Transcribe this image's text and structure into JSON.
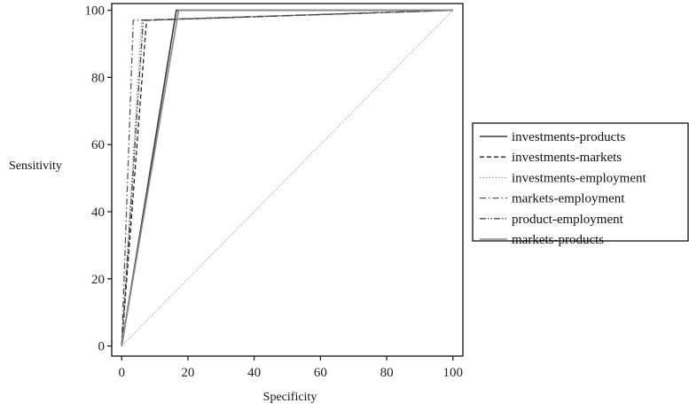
{
  "chart_data": {
    "type": "line",
    "xlabel": "Specificity",
    "ylabel": "Sensitivity",
    "xlim": [
      -3,
      103
    ],
    "ylim": [
      -3,
      102
    ],
    "xticks": [
      0,
      20,
      40,
      60,
      80,
      100
    ],
    "yticks": [
      0,
      20,
      40,
      60,
      80,
      100
    ],
    "xtick_labels": [
      "0",
      "20",
      "40",
      "60",
      "80",
      "100"
    ],
    "ytick_labels": [
      "0",
      "20",
      "40",
      "60",
      "80",
      "100"
    ],
    "grid": false,
    "legend_position": "right",
    "reference_line": {
      "x": [
        0,
        100
      ],
      "y": [
        0,
        100
      ],
      "color": "#999999",
      "style": "dotted"
    },
    "series": [
      {
        "name": "investments-products",
        "color": "#3a3a3a",
        "style": "solid",
        "x": [
          0,
          16.5,
          100
        ],
        "y": [
          0,
          100,
          100
        ]
      },
      {
        "name": "investments-markets",
        "color": "#222222",
        "style": "dashed",
        "x": [
          0,
          7.5,
          100
        ],
        "y": [
          0,
          97,
          100
        ]
      },
      {
        "name": "investments-employment",
        "color": "#9a9a9a",
        "style": "dotted",
        "x": [
          0,
          6,
          100
        ],
        "y": [
          0,
          97,
          100
        ]
      },
      {
        "name": "markets-employment",
        "color": "#555555",
        "style": "dashdot",
        "x": [
          0,
          3.5,
          100
        ],
        "y": [
          0,
          97,
          100
        ]
      },
      {
        "name": "product-employment",
        "color": "#444444",
        "style": "dashdotdot",
        "x": [
          0,
          6.5,
          100
        ],
        "y": [
          0,
          97,
          100
        ]
      },
      {
        "name": "markets-products",
        "color": "#8a8a8a",
        "style": "solid",
        "x": [
          0,
          17.2,
          100
        ],
        "y": [
          0,
          100,
          100
        ]
      }
    ]
  }
}
